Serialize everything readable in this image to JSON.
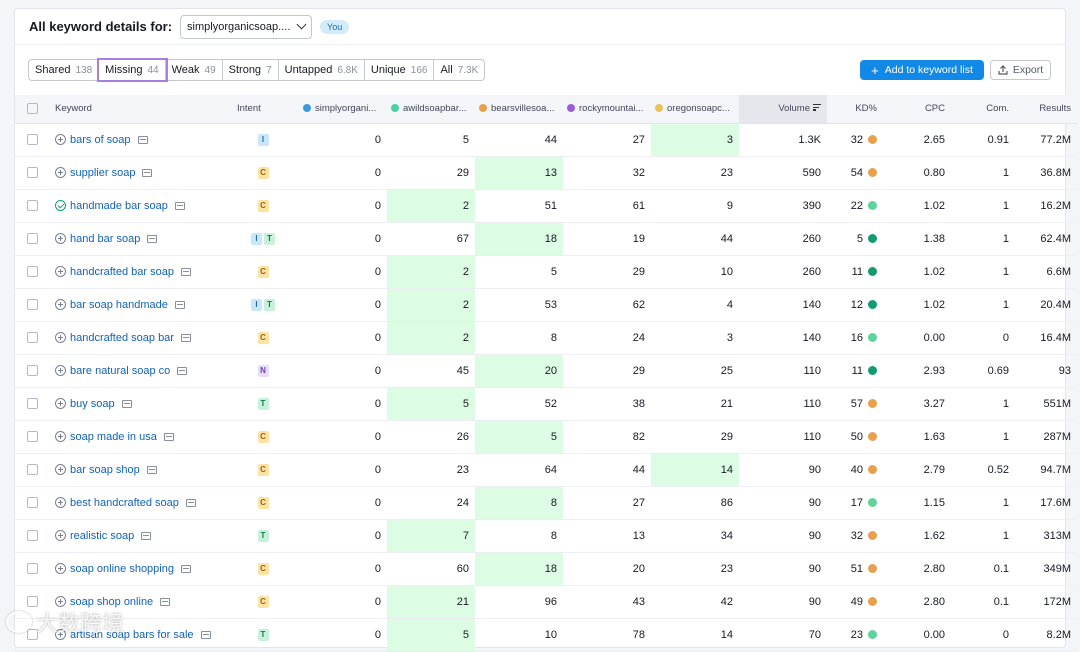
{
  "header": {
    "title": "All keyword details for:",
    "domain": "simplyorganicsoap....",
    "you_badge": "You"
  },
  "filters": [
    {
      "label": "Shared",
      "count": "138",
      "active": false
    },
    {
      "label": "Missing",
      "count": "44",
      "active": true
    },
    {
      "label": "Weak",
      "count": "49",
      "active": false
    },
    {
      "label": "Strong",
      "count": "7",
      "active": false
    },
    {
      "label": "Untapped",
      "count": "6.8K",
      "active": false
    },
    {
      "label": "Unique",
      "count": "166",
      "active": false
    },
    {
      "label": "All",
      "count": "7.3K",
      "active": false
    }
  ],
  "actions": {
    "add_label": "Add to keyword list",
    "export_label": "Export"
  },
  "columns": {
    "keyword": "Keyword",
    "intent": "Intent",
    "domains": [
      {
        "label": "simplyorgani...",
        "color": "#3a9ad9"
      },
      {
        "label": "awildsoapbar...",
        "color": "#4ccfa3"
      },
      {
        "label": "bearsvillesoa...",
        "color": "#e8a04a"
      },
      {
        "label": "rockymountai...",
        "color": "#9a5fd6"
      },
      {
        "label": "oregonsoapc...",
        "color": "#e8c35a"
      }
    ],
    "volume": "Volume",
    "kd": "KD%",
    "cpc": "CPC",
    "com": "Com.",
    "results": "Results"
  },
  "colors": {
    "kd_orange": "#e8a04a",
    "kd_lightgreen": "#5ed39a",
    "kd_darkgreen": "#129b70",
    "highlight": "#dcfce4"
  },
  "rows": [
    {
      "keyword": "bars of soap",
      "status_icon": "plus-icon",
      "intent": [
        "I"
      ],
      "ranks": [
        "0",
        "5",
        "44",
        "27",
        "3"
      ],
      "hl": 4,
      "volume": "1.3K",
      "kd": "32",
      "kd_color": "#e8a04a",
      "cpc": "2.65",
      "com": "0.91",
      "results": "77.2M"
    },
    {
      "keyword": "supplier soap",
      "status_icon": "plus-icon",
      "intent": [
        "C"
      ],
      "ranks": [
        "0",
        "29",
        "13",
        "32",
        "23"
      ],
      "hl": 2,
      "volume": "590",
      "kd": "54",
      "kd_color": "#e8a04a",
      "cpc": "0.80",
      "com": "1",
      "results": "36.8M"
    },
    {
      "keyword": "handmade bar soap",
      "status_icon": "check-icon",
      "intent": [
        "C"
      ],
      "ranks": [
        "0",
        "2",
        "51",
        "61",
        "9"
      ],
      "hl": 1,
      "volume": "390",
      "kd": "22",
      "kd_color": "#5ed39a",
      "cpc": "1.02",
      "com": "1",
      "results": "16.2M"
    },
    {
      "keyword": "hand bar soap",
      "status_icon": "plus-icon",
      "intent": [
        "I",
        "T"
      ],
      "ranks": [
        "0",
        "67",
        "18",
        "19",
        "44"
      ],
      "hl": 2,
      "volume": "260",
      "kd": "5",
      "kd_color": "#129b70",
      "cpc": "1.38",
      "com": "1",
      "results": "62.4M"
    },
    {
      "keyword": "handcrafted bar soap",
      "status_icon": "plus-icon",
      "intent": [
        "C"
      ],
      "ranks": [
        "0",
        "2",
        "5",
        "29",
        "10"
      ],
      "hl": 1,
      "volume": "260",
      "kd": "11",
      "kd_color": "#129b70",
      "cpc": "1.02",
      "com": "1",
      "results": "6.6M"
    },
    {
      "keyword": "bar soap handmade",
      "status_icon": "plus-icon",
      "intent": [
        "I",
        "T"
      ],
      "ranks": [
        "0",
        "2",
        "53",
        "62",
        "4"
      ],
      "hl": 1,
      "volume": "140",
      "kd": "12",
      "kd_color": "#129b70",
      "cpc": "1.02",
      "com": "1",
      "results": "20.4M"
    },
    {
      "keyword": "handcrafted soap bar",
      "status_icon": "plus-icon",
      "intent": [
        "C"
      ],
      "ranks": [
        "0",
        "2",
        "8",
        "24",
        "3"
      ],
      "hl": 1,
      "volume": "140",
      "kd": "16",
      "kd_color": "#5ed39a",
      "cpc": "0.00",
      "com": "0",
      "results": "16.4M"
    },
    {
      "keyword": "bare natural soap co",
      "status_icon": "plus-icon",
      "intent": [
        "N"
      ],
      "ranks": [
        "0",
        "45",
        "20",
        "29",
        "25"
      ],
      "hl": 2,
      "volume": "110",
      "kd": "11",
      "kd_color": "#129b70",
      "cpc": "2.93",
      "com": "0.69",
      "results": "93"
    },
    {
      "keyword": "buy soap",
      "status_icon": "plus-icon",
      "intent": [
        "T"
      ],
      "ranks": [
        "0",
        "5",
        "52",
        "38",
        "21"
      ],
      "hl": 1,
      "volume": "110",
      "kd": "57",
      "kd_color": "#e8a04a",
      "cpc": "3.27",
      "com": "1",
      "results": "551M"
    },
    {
      "keyword": "soap made in usa",
      "status_icon": "plus-icon",
      "intent": [
        "C"
      ],
      "ranks": [
        "0",
        "26",
        "5",
        "82",
        "29"
      ],
      "hl": 2,
      "volume": "110",
      "kd": "50",
      "kd_color": "#e8a04a",
      "cpc": "1.63",
      "com": "1",
      "results": "287M"
    },
    {
      "keyword": "bar soap shop",
      "status_icon": "plus-icon",
      "intent": [
        "C"
      ],
      "ranks": [
        "0",
        "23",
        "64",
        "44",
        "14"
      ],
      "hl": 4,
      "volume": "90",
      "kd": "40",
      "kd_color": "#e8a04a",
      "cpc": "2.79",
      "com": "0.52",
      "results": "94.7M"
    },
    {
      "keyword": "best handcrafted soap",
      "status_icon": "plus-icon",
      "intent": [
        "C"
      ],
      "ranks": [
        "0",
        "24",
        "8",
        "27",
        "86"
      ],
      "hl": 2,
      "volume": "90",
      "kd": "17",
      "kd_color": "#5ed39a",
      "cpc": "1.15",
      "com": "1",
      "results": "17.6M"
    },
    {
      "keyword": "realistic soap",
      "status_icon": "plus-icon",
      "intent": [
        "T"
      ],
      "ranks": [
        "0",
        "7",
        "8",
        "13",
        "34"
      ],
      "hl": 1,
      "volume": "90",
      "kd": "32",
      "kd_color": "#e8a04a",
      "cpc": "1.62",
      "com": "1",
      "results": "313M"
    },
    {
      "keyword": "soap online shopping",
      "status_icon": "plus-icon",
      "intent": [
        "C"
      ],
      "ranks": [
        "0",
        "60",
        "18",
        "20",
        "23"
      ],
      "hl": 2,
      "volume": "90",
      "kd": "51",
      "kd_color": "#e8a04a",
      "cpc": "2.80",
      "com": "0.1",
      "results": "349M"
    },
    {
      "keyword": "soap shop online",
      "status_icon": "plus-icon",
      "intent": [
        "C"
      ],
      "ranks": [
        "0",
        "21",
        "96",
        "43",
        "42"
      ],
      "hl": 1,
      "volume": "90",
      "kd": "49",
      "kd_color": "#e8a04a",
      "cpc": "2.80",
      "com": "0.1",
      "results": "172M"
    },
    {
      "keyword": "artisan soap bars for sale",
      "status_icon": "plus-icon",
      "intent": [
        "T"
      ],
      "ranks": [
        "0",
        "5",
        "10",
        "78",
        "14"
      ],
      "hl": 1,
      "volume": "70",
      "kd": "23",
      "kd_color": "#5ed39a",
      "cpc": "0.00",
      "com": "0",
      "results": "8.2M"
    }
  ],
  "watermark": "大数跨境"
}
